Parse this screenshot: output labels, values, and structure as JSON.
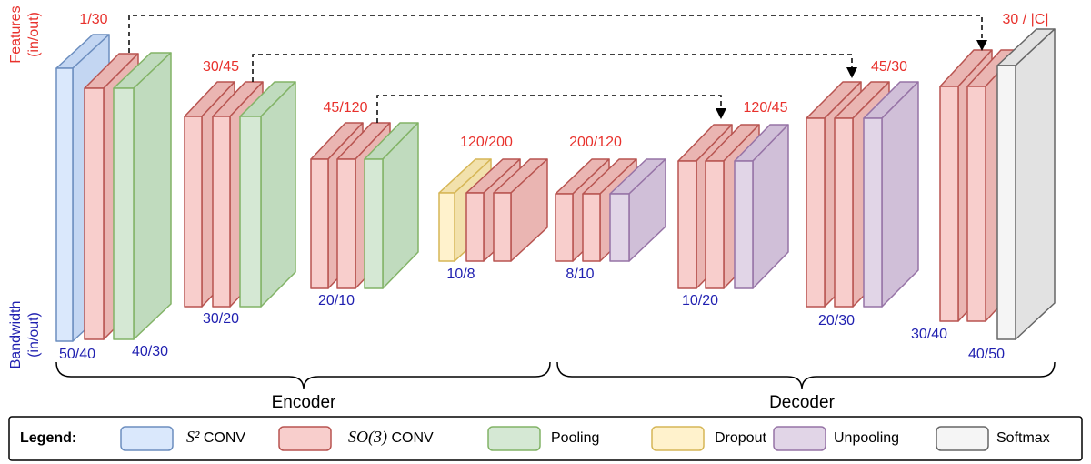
{
  "axis_labels": {
    "features": [
      "Features",
      "(in/out)"
    ],
    "bandwidth": [
      "Bandwidth",
      "(in/out)"
    ]
  },
  "feature_labels": [
    "1/30",
    "30/45",
    "45/120",
    "120/200",
    "200/120",
    "120/45",
    "45/30",
    "30 / |C|"
  ],
  "bandwidth_labels": [
    "50/40",
    "40/30",
    "30/20",
    "20/10",
    "10/8",
    "8/10",
    "10/20",
    "20/30",
    "30/40",
    "40/50"
  ],
  "sections": [
    "Encoder",
    "Decoder"
  ],
  "legend": {
    "title": "Legend:",
    "items": [
      {
        "symbol": "S²",
        "text": "CONV"
      },
      {
        "symbol": "SO(3)",
        "text": "CONV"
      },
      {
        "text": "Pooling"
      },
      {
        "text": "Dropout"
      },
      {
        "text": "Unpooling"
      },
      {
        "text": "Softmax"
      }
    ]
  }
}
